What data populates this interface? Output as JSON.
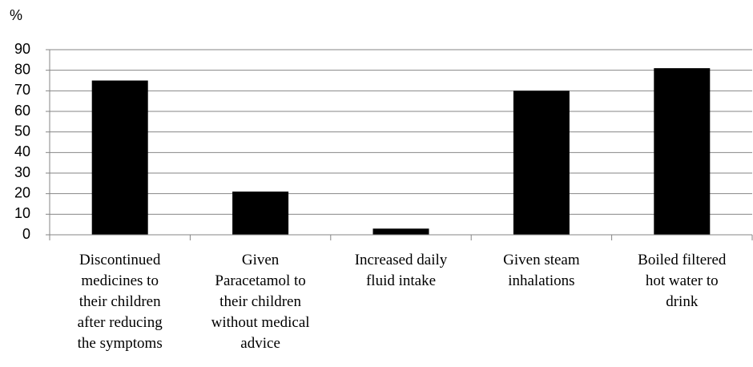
{
  "chart_data": {
    "type": "bar",
    "y_label": "%",
    "categories": [
      "Discontinued\nmedicines to\ntheir children\nafter reducing\nthe symptoms",
      "Given\nParacetamol to\ntheir children\nwithout medical\nadvice",
      "Increased daily\nfluid intake",
      "Given steam\ninhalations",
      "Boiled filtered\nhot water to\ndrink"
    ],
    "values": [
      75,
      21,
      3,
      70,
      81
    ],
    "color": "#000000",
    "ylim": [
      0,
      90
    ],
    "yticks": [
      0,
      10,
      20,
      30,
      40,
      50,
      60,
      70,
      80,
      90
    ],
    "grid": true
  }
}
